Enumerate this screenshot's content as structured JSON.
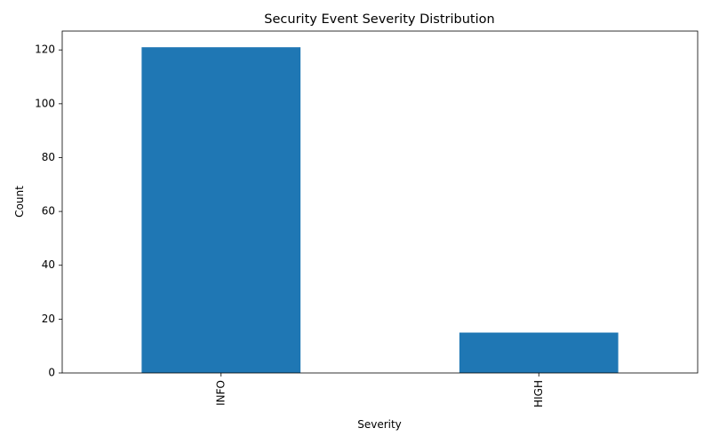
{
  "chart_data": {
    "type": "bar",
    "title": "Security Event Severity Distribution",
    "xlabel": "Severity",
    "ylabel": "Count",
    "categories": [
      "INFO",
      "HIGH"
    ],
    "values": [
      121,
      15
    ],
    "ylim": [
      0,
      127
    ],
    "yticks": [
      0,
      20,
      40,
      60,
      80,
      100,
      120
    ],
    "bar_color": "#1f77b4",
    "grid": false,
    "legend": "none"
  }
}
